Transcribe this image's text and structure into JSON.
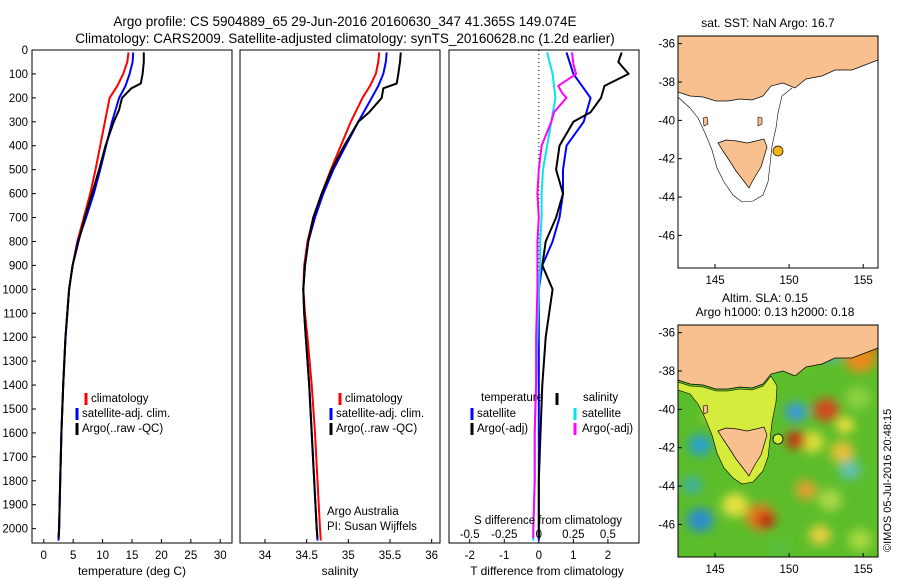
{
  "header": {
    "line1": "Argo profile: CS 5904889_65 29-Jun-2016 20160630_347 41.365S 149.074E",
    "line2": "Climatology: CARS2009. Satellite-adjusted climatology: synTS_20160628.nc (1.2d earlier)"
  },
  "colors": {
    "clim": "#ff0000",
    "sat": "#0000ff",
    "argo": "#000000",
    "sal_sat": "#00e5ee",
    "sal_argo": "#ff00ff",
    "land": "#f7c08e",
    "float": "#f6b514"
  },
  "depth_axis": {
    "ticks": [
      0,
      100,
      200,
      300,
      400,
      500,
      600,
      700,
      800,
      900,
      1000,
      1100,
      1200,
      1300,
      1400,
      1500,
      1600,
      1700,
      1800,
      1900,
      2000
    ],
    "range": [
      0,
      2060
    ]
  },
  "chart_data": [
    {
      "type": "line",
      "name": "temperature",
      "xlabel": "temperature (deg C)",
      "xlim": [
        -2,
        32
      ],
      "xticks": [
        0,
        5,
        10,
        15,
        20,
        25,
        30
      ],
      "ylim": [
        0,
        2060
      ],
      "legend": [
        "climatology",
        "satellite-adj. clim.",
        "Argo(..raw -QC)"
      ],
      "series": [
        {
          "name": "climatology",
          "depth": [
            10,
            50,
            100,
            150,
            200,
            300,
            400,
            500,
            600,
            700,
            800,
            900,
            1000,
            1200,
            1400,
            1600,
            1800,
            2000,
            2050
          ],
          "values": [
            14.4,
            14.2,
            13.5,
            12.5,
            11.2,
            10.4,
            9.6,
            8.8,
            7.9,
            6.8,
            5.7,
            4.9,
            4.3,
            3.7,
            3.3,
            3.0,
            2.8,
            2.6,
            2.5
          ]
        },
        {
          "name": "satellite-adj. clim.",
          "depth": [
            10,
            50,
            100,
            150,
            200,
            300,
            400,
            500,
            600,
            700,
            800,
            900,
            1000,
            1200,
            1400,
            1600,
            1800,
            2000,
            2050
          ],
          "values": [
            15.2,
            15.1,
            14.6,
            13.9,
            12.8,
            11.6,
            10.6,
            9.6,
            8.5,
            7.2,
            5.8,
            4.9,
            4.3,
            3.7,
            3.3,
            3.0,
            2.8,
            2.6,
            2.5
          ]
        },
        {
          "name": "Argo(..raw -QC)",
          "depth": [
            10,
            50,
            100,
            140,
            160,
            200,
            250,
            300,
            400,
            500,
            600,
            700,
            800,
            900,
            1000,
            1200,
            1400,
            1600,
            1800,
            2000,
            2040
          ],
          "values": [
            17.0,
            17.0,
            16.8,
            16.5,
            14.9,
            13.3,
            12.8,
            11.9,
            10.5,
            9.4,
            8.2,
            7.0,
            5.9,
            4.9,
            4.3,
            3.7,
            3.3,
            3.0,
            2.8,
            2.6,
            2.5
          ]
        }
      ]
    },
    {
      "type": "line",
      "name": "salinity",
      "xlabel": "salinity",
      "xlim": [
        33.7,
        36.1
      ],
      "xticks": [
        34,
        34.5,
        35,
        35.5,
        36
      ],
      "ylim": [
        0,
        2060
      ],
      "legend": [
        "climatology",
        "satellite-adj. clim.",
        "Argo(..raw -QC)"
      ],
      "credit1": "Argo Australia",
      "credit2": "PI: Susan Wijffels",
      "series": [
        {
          "name": "climatology",
          "depth": [
            10,
            50,
            100,
            150,
            200,
            300,
            400,
            500,
            600,
            700,
            800,
            900,
            1000,
            1100,
            1200,
            1400,
            1600,
            1800,
            2000,
            2050
          ],
          "values": [
            35.37,
            35.36,
            35.33,
            35.26,
            35.17,
            35.03,
            34.91,
            34.79,
            34.68,
            34.58,
            34.51,
            34.47,
            34.46,
            34.48,
            34.51,
            34.56,
            34.6,
            34.63,
            34.66,
            34.67
          ]
        },
        {
          "name": "satellite-adj. clim.",
          "depth": [
            10,
            50,
            100,
            150,
            200,
            300,
            400,
            500,
            600,
            700,
            800,
            900,
            1000,
            1100,
            1200,
            1400,
            1600,
            1800,
            2000,
            2050
          ],
          "values": [
            35.46,
            35.45,
            35.42,
            35.36,
            35.28,
            35.12,
            34.97,
            34.82,
            34.7,
            34.6,
            34.52,
            34.48,
            34.46,
            34.47,
            34.49,
            34.53,
            34.56,
            34.59,
            34.62,
            34.63
          ]
        },
        {
          "name": "Argo(..raw -QC)",
          "depth": [
            10,
            50,
            100,
            140,
            160,
            200,
            260,
            300,
            400,
            500,
            600,
            700,
            800,
            900,
            1000,
            1100,
            1200,
            1400,
            1600,
            1800,
            2000,
            2040
          ],
          "values": [
            35.63,
            35.62,
            35.6,
            35.58,
            35.42,
            35.4,
            35.25,
            35.12,
            34.95,
            34.8,
            34.68,
            34.58,
            34.52,
            34.48,
            34.46,
            34.47,
            34.49,
            34.53,
            34.56,
            34.59,
            34.62,
            34.63
          ]
        }
      ]
    },
    {
      "type": "line",
      "name": "difference from climatology",
      "xlabel": "T difference from climatology",
      "xlabel2": "S difference from climatology",
      "xlim": [
        -2.6,
        2.9
      ],
      "xticks": [
        -2,
        -1,
        0,
        1,
        2
      ],
      "xticks2": [
        -0.5,
        -0.25,
        0,
        0.25,
        0.5
      ],
      "ylim": [
        0,
        2060
      ],
      "legend_title_t": "temperature",
      "legend_title_s": "salinity",
      "legend_t": [
        "satellite",
        "Argo(-adj)"
      ],
      "legend_s": [
        "satellite",
        "Argo(-adj)"
      ],
      "series": [
        {
          "name": "T satellite",
          "depth": [
            10,
            100,
            200,
            300,
            400,
            500,
            600,
            700,
            800,
            900,
            1000,
            1200,
            1400,
            1600,
            1800,
            2000,
            2050
          ],
          "values": [
            0.8,
            1.0,
            1.5,
            1.3,
            0.8,
            0.7,
            0.7,
            0.6,
            0.4,
            0.1,
            0.0,
            0.0,
            0.0,
            0.0,
            0.0,
            0.0,
            0.0
          ]
        },
        {
          "name": "T Argo(-adj)",
          "depth": [
            10,
            50,
            100,
            150,
            200,
            260,
            300,
            400,
            500,
            600,
            700,
            800,
            900,
            1000,
            1200,
            1400,
            1600,
            1800,
            2000,
            2040
          ],
          "values": [
            2.4,
            2.3,
            2.6,
            1.9,
            1.8,
            1.5,
            1.0,
            0.6,
            0.5,
            0.7,
            0.5,
            0.2,
            0.1,
            0.4,
            0.2,
            0.1,
            0.05,
            0.0,
            0.0,
            0.0
          ]
        },
        {
          "name": "S satellite",
          "depth": [
            10,
            100,
            200,
            300,
            400,
            500,
            600,
            700,
            800,
            900,
            1000,
            1200,
            1400,
            1600,
            1800,
            2000,
            2050
          ],
          "values": [
            0.06,
            0.1,
            0.12,
            0.09,
            0.06,
            0.03,
            0.02,
            0.02,
            0.01,
            0.01,
            0.0,
            -0.01,
            -0.02,
            -0.03,
            -0.03,
            -0.04,
            -0.04
          ]
        },
        {
          "name": "S Argo(-adj)",
          "depth": [
            10,
            60,
            100,
            150,
            180,
            200,
            260,
            300,
            400,
            500,
            600,
            700,
            800,
            900,
            1000,
            1200,
            1400,
            1600,
            1800,
            2000,
            2040
          ],
          "values": [
            0.24,
            0.25,
            0.27,
            0.14,
            0.17,
            0.2,
            0.11,
            0.09,
            0.02,
            0.0,
            -0.01,
            0.0,
            -0.01,
            -0.01,
            -0.01,
            -0.02,
            -0.02,
            -0.03,
            -0.03,
            -0.04,
            -0.04
          ]
        }
      ]
    }
  ],
  "map_sst": {
    "title": "sat. SST: NaN Argo: 16.7",
    "lon_ticks": [
      145,
      150,
      155
    ],
    "lat_ticks": [
      -36,
      -38,
      -40,
      -42,
      -44,
      -46
    ],
    "lon_range": [
      142.5,
      156
    ],
    "lat_range": [
      -47.7,
      -35.6
    ],
    "float": {
      "lon": 149.074,
      "lat": -41.365
    }
  },
  "map_sla": {
    "title1": "Altim. SLA: 0.15",
    "title2": "Argo h1000: 0.13 h2000: 0.18",
    "lon_ticks": [
      145,
      150,
      155
    ],
    "lat_ticks": [
      -36,
      -38,
      -40,
      -42,
      -44,
      -46
    ],
    "lon_range": [
      142.5,
      156
    ],
    "lat_range": [
      -47.7,
      -35.6
    ],
    "float": {
      "lon": 149.074,
      "lat": -41.365
    }
  },
  "credit": "©IMOS 05-Jul-2016 20:48:15"
}
